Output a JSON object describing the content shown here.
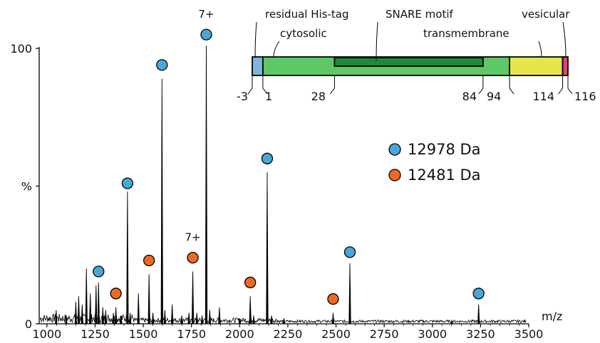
{
  "chart_data": {
    "type": "line",
    "title": "",
    "xlabel": "m/z",
    "ylabel": "%",
    "xlim": [
      960,
      3500
    ],
    "ylim": [
      0,
      100
    ],
    "x_ticks": [
      1000,
      1250,
      1500,
      1750,
      2000,
      2250,
      2500,
      2750,
      3000,
      3250,
      3500
    ],
    "y_ticks": [
      {
        "value": 0,
        "label": "0"
      },
      {
        "value": 50,
        "label": "%"
      },
      {
        "value": 100,
        "label": "100"
      }
    ],
    "grid": false,
    "spectrum_peaks": [
      {
        "x": 1048,
        "y": 5
      },
      {
        "x": 1100,
        "y": 3
      },
      {
        "x": 1150,
        "y": 8
      },
      {
        "x": 1165,
        "y": 10
      },
      {
        "x": 1183,
        "y": 7
      },
      {
        "x": 1205,
        "y": 20
      },
      {
        "x": 1225,
        "y": 11
      },
      {
        "x": 1255,
        "y": 14
      },
      {
        "x": 1268,
        "y": 15
      },
      {
        "x": 1290,
        "y": 6
      },
      {
        "x": 1305,
        "y": 5
      },
      {
        "x": 1345,
        "y": 4
      },
      {
        "x": 1358,
        "y": 6
      },
      {
        "x": 1385,
        "y": 3
      },
      {
        "x": 1418,
        "y": 48
      },
      {
        "x": 1432,
        "y": 4
      },
      {
        "x": 1475,
        "y": 11
      },
      {
        "x": 1530,
        "y": 18
      },
      {
        "x": 1550,
        "y": 4
      },
      {
        "x": 1597,
        "y": 89
      },
      {
        "x": 1612,
        "y": 5
      },
      {
        "x": 1650,
        "y": 7
      },
      {
        "x": 1700,
        "y": 3
      },
      {
        "x": 1737,
        "y": 4
      },
      {
        "x": 1757,
        "y": 19
      },
      {
        "x": 1778,
        "y": 4
      },
      {
        "x": 1805,
        "y": 3
      },
      {
        "x": 1827,
        "y": 101
      },
      {
        "x": 1845,
        "y": 5
      },
      {
        "x": 1895,
        "y": 6
      },
      {
        "x": 2000,
        "y": 2
      },
      {
        "x": 2055,
        "y": 10
      },
      {
        "x": 2073,
        "y": 3
      },
      {
        "x": 2143,
        "y": 55
      },
      {
        "x": 2165,
        "y": 3
      },
      {
        "x": 2230,
        "y": 2
      },
      {
        "x": 2485,
        "y": 4
      },
      {
        "x": 2572,
        "y": 22
      },
      {
        "x": 3100,
        "y": 1
      },
      {
        "x": 3240,
        "y": 7
      }
    ],
    "series": [
      {
        "name": "12978 Da",
        "color": "#49a7d8",
        "points": [
          {
            "x": 1268,
            "y": 19
          },
          {
            "x": 1418,
            "y": 51
          },
          {
            "x": 1597,
            "y": 94
          },
          {
            "x": 1827,
            "y": 105
          },
          {
            "x": 2143,
            "y": 60
          },
          {
            "x": 2572,
            "y": 26
          },
          {
            "x": 3240,
            "y": 11
          }
        ]
      },
      {
        "name": "12481 Da",
        "color": "#ec6a24",
        "points": [
          {
            "x": 1358,
            "y": 11
          },
          {
            "x": 1530,
            "y": 23
          },
          {
            "x": 1757,
            "y": 24
          },
          {
            "x": 2055,
            "y": 15
          },
          {
            "x": 2485,
            "y": 9
          }
        ]
      }
    ],
    "annotations": [
      {
        "text": "7+",
        "x": 1827,
        "y": 109
      },
      {
        "text": "7+",
        "x": 1757,
        "y": 28
      }
    ],
    "legend_position": "right-middle",
    "domain_map": {
      "range": [
        -3,
        116
      ],
      "tick_labels": [
        "-3",
        "1",
        "28",
        "84",
        "94",
        "114",
        "116"
      ],
      "regions": [
        {
          "label": "residual His-tag",
          "start": -3,
          "end": 1,
          "color": "#7fb5d8"
        },
        {
          "label": "cytosolic",
          "start": 1,
          "end": 94,
          "color": "#5ec867"
        },
        {
          "label": "SNARE motif",
          "start": 28,
          "end": 84,
          "color": "#1e8a3a"
        },
        {
          "label": "transmembrane",
          "start": 94,
          "end": 114,
          "color": "#e6e64a"
        },
        {
          "label": "vesicular",
          "start": 114,
          "end": 116,
          "color": "#e0417a"
        }
      ]
    }
  }
}
